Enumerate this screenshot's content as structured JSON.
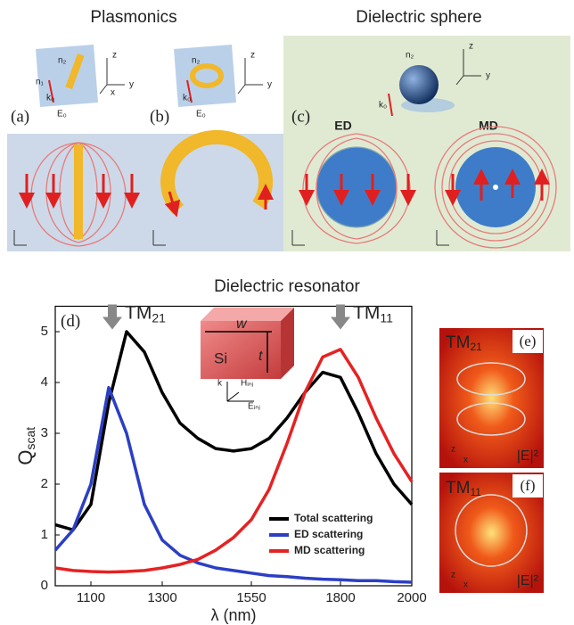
{
  "figure": {
    "top_titles": [
      "Plasmonics",
      "Dielectric sphere"
    ],
    "panel_labels": [
      "(a)",
      "(b)",
      "(c)"
    ],
    "mode_labels": [
      "ED",
      "MD"
    ],
    "inset_labels": {
      "n2": "n₂",
      "n1": "n₁",
      "k0": "k₀",
      "E0": "E₀",
      "z": "z",
      "y": "y",
      "x": "x"
    },
    "bottom_title": "Dielectric resonator",
    "cube_labels": {
      "w": "w",
      "t": "t",
      "si": "Si",
      "k": "k",
      "h": "Hᵢₙⱼ",
      "e": "Eᵢₙⱼ"
    },
    "field_panels": [
      {
        "label": "(e)",
        "mode": {
          "text": "TM",
          "sub": "21"
        },
        "field": "|E|²"
      },
      {
        "label": "(f)",
        "mode": {
          "text": "TM",
          "sub": "11"
        },
        "field": "|E|²"
      }
    ]
  },
  "chart_data": {
    "type": "line",
    "panel_label": "(d)",
    "x_label": "λ (nm)",
    "y_label": {
      "text": "Q",
      "sub": "scat"
    },
    "annotations": [
      {
        "text": "TM",
        "sub": "21",
        "x": 1160
      },
      {
        "text": "TM",
        "sub": "11",
        "x": 1800
      }
    ],
    "x": [
      1000,
      1050,
      1100,
      1150,
      1200,
      1250,
      1300,
      1350,
      1400,
      1450,
      1500,
      1550,
      1600,
      1650,
      1700,
      1750,
      1800,
      1850,
      1900,
      1950,
      2000
    ],
    "series": [
      {
        "name": "Total scattering",
        "color": "#000000",
        "values": [
          1.2,
          1.1,
          1.6,
          3.6,
          5.0,
          4.6,
          3.8,
          3.2,
          2.9,
          2.7,
          2.65,
          2.7,
          2.9,
          3.3,
          3.8,
          4.2,
          4.1,
          3.4,
          2.6,
          2.0,
          1.6
        ]
      },
      {
        "name": "ED scattering",
        "color": "#2b3fc4",
        "values": [
          0.7,
          1.1,
          2.0,
          3.9,
          3.0,
          1.6,
          0.9,
          0.6,
          0.45,
          0.35,
          0.3,
          0.25,
          0.2,
          0.18,
          0.15,
          0.13,
          0.12,
          0.1,
          0.1,
          0.08,
          0.07
        ]
      },
      {
        "name": "MD scattering",
        "color": "#e52222",
        "values": [
          0.35,
          0.3,
          0.28,
          0.27,
          0.28,
          0.3,
          0.35,
          0.42,
          0.52,
          0.7,
          0.95,
          1.3,
          1.9,
          2.8,
          3.8,
          4.5,
          4.65,
          4.1,
          3.3,
          2.6,
          2.05
        ]
      }
    ],
    "xlim": [
      1000,
      2000
    ],
    "xticks": [
      1100,
      1300,
      1550,
      1800,
      2000
    ],
    "ylim": [
      0,
      5.5
    ],
    "yticks": [
      0,
      1,
      2,
      3,
      4,
      5
    ],
    "legend": "lower right",
    "grid": false
  }
}
